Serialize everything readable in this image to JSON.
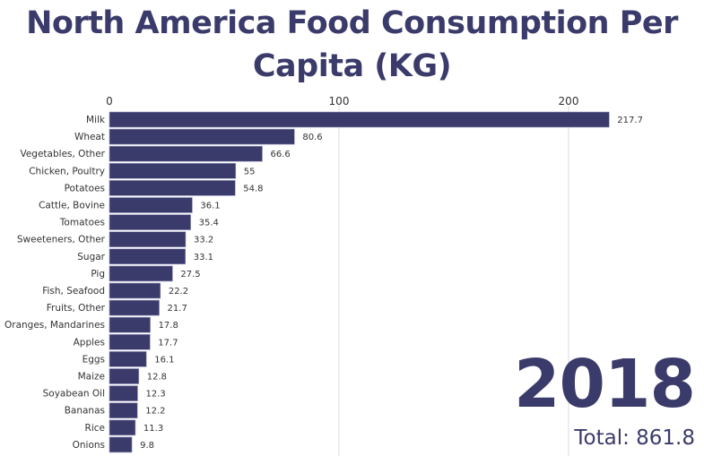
{
  "chart_data": {
    "type": "bar",
    "orientation": "horizontal",
    "title": "North America Food Consumption Per Capita (KG)",
    "year": "2018",
    "total_label": "Total: 861.8",
    "xlim": [
      0,
      240
    ],
    "xticks": [
      0,
      100,
      200
    ],
    "grid": true,
    "bar_color": "#3b3b6b",
    "categories": [
      "Milk",
      "Wheat",
      "Vegetables, Other",
      "Chicken, Poultry",
      "Potatoes",
      "Cattle, Bovine",
      "Tomatoes",
      "Sweeteners, Other",
      "Sugar",
      "Pig",
      "Fish, Seafood",
      "Fruits, Other",
      "Oranges, Mandarines",
      "Apples",
      "Eggs",
      "Maize",
      "Soyabean Oil",
      "Bananas",
      "Rice",
      "Onions"
    ],
    "values": [
      217.7,
      80.6,
      66.6,
      55,
      54.8,
      36.1,
      35.4,
      33.2,
      33.1,
      27.5,
      22.2,
      21.7,
      17.8,
      17.7,
      16.1,
      12.8,
      12.3,
      12.2,
      11.3,
      9.8
    ]
  }
}
